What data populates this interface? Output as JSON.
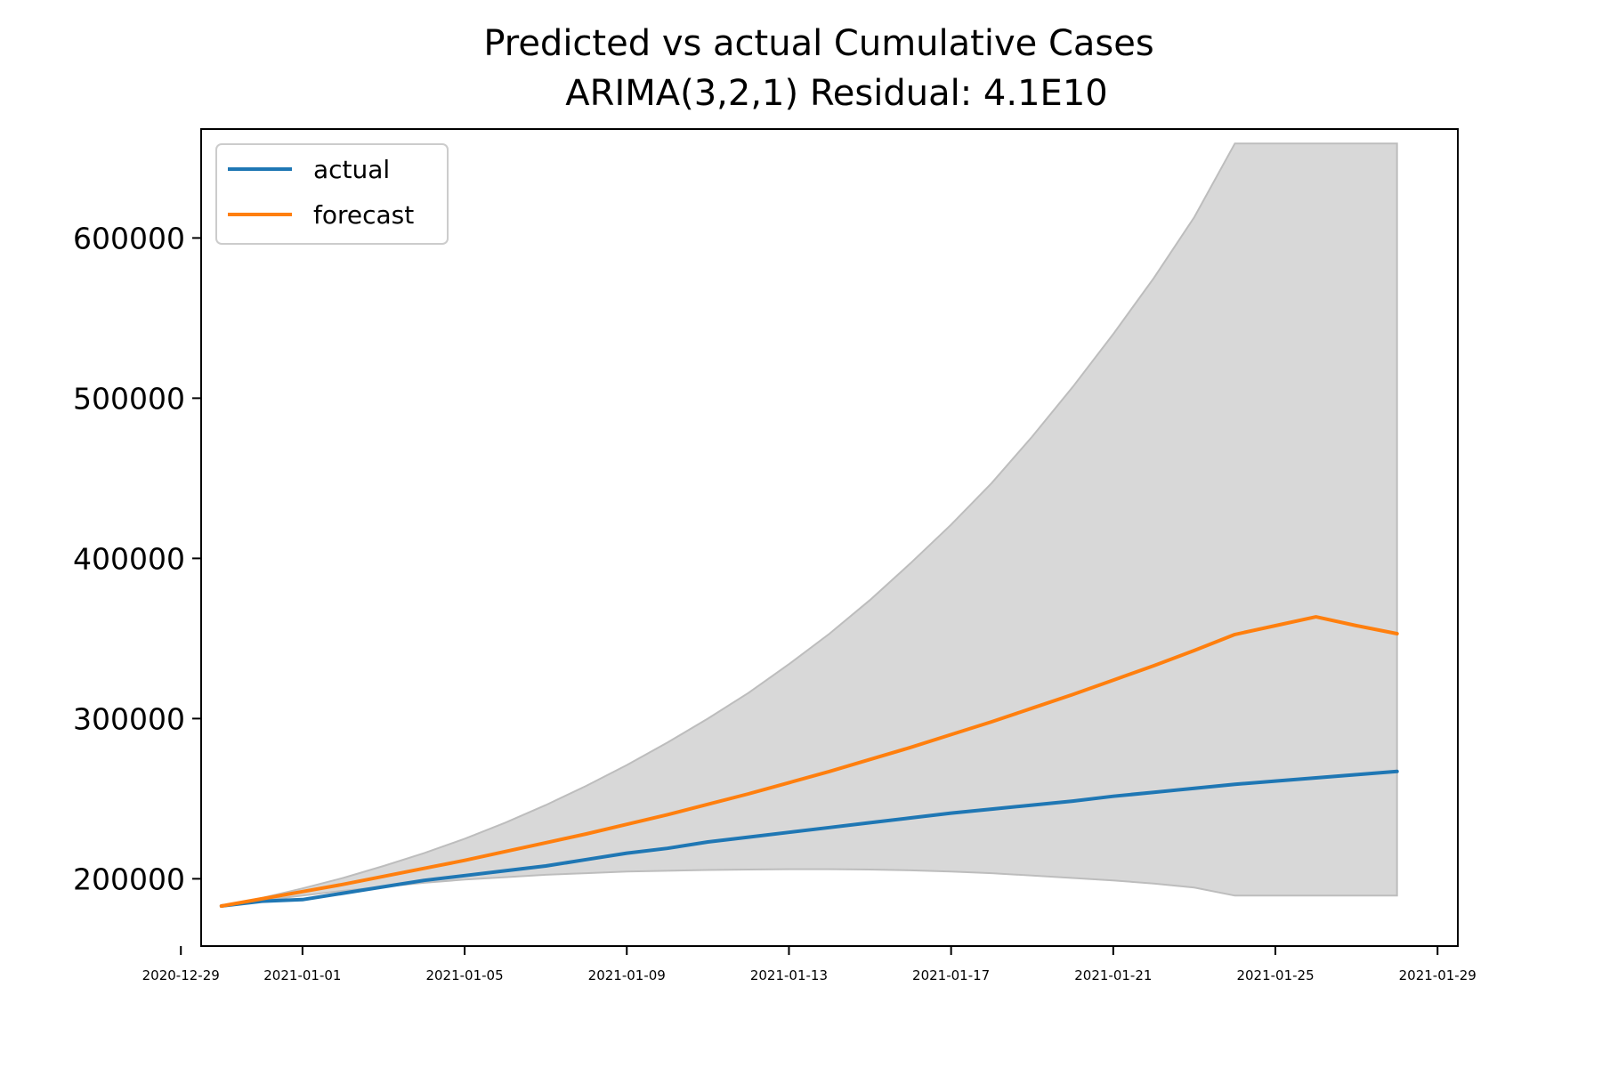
{
  "chart_data": {
    "type": "line",
    "title": "Predicted vs actual Cumulative Cases",
    "subtitle": "ARIMA(3,2,1) Residual: 4.1E10",
    "xlabel": "",
    "ylabel": "",
    "x_start": "2020-12-30",
    "x_end": "2021-01-28",
    "xlim": [
      "2020-12-29T12:00",
      "2021-01-29T12:00"
    ],
    "ylim": [
      158000,
      668000
    ],
    "x_ticks": [
      "2020-12-29",
      "2021-01-01",
      "2021-01-05",
      "2021-01-09",
      "2021-01-13",
      "2021-01-17",
      "2021-01-21",
      "2021-01-25",
      "2021-01-29"
    ],
    "y_ticks": [
      200000,
      300000,
      400000,
      500000,
      600000
    ],
    "grid": false,
    "legend_position": "top-left",
    "series": [
      {
        "name": "actual",
        "color": "#1f77b4",
        "values": [
          183000,
          186000,
          187000,
          191000,
          195000,
          199000,
          202000,
          205000,
          208000,
          212000,
          216000,
          219000,
          223000,
          226000,
          229000,
          232000,
          235000,
          238000,
          241000,
          243500,
          246000,
          248500,
          251500,
          254000,
          256500,
          259000,
          261000,
          263000,
          265000,
          267000
        ]
      },
      {
        "name": "forecast",
        "color": "#ff7f0e",
        "values": [
          183000,
          187500,
          192000,
          196500,
          201500,
          206500,
          211500,
          217000,
          222500,
          228000,
          234000,
          240000,
          246500,
          253000,
          260000,
          267000,
          274500,
          282000,
          290000,
          298000,
          306500,
          315000,
          324000,
          333000,
          342500,
          352500,
          358000,
          363500,
          358000,
          353000
        ]
      }
    ],
    "confidence_band": {
      "color": "#d8d8d8",
      "upper": [
        183000,
        188000,
        194000,
        200500,
        208000,
        216000,
        225000,
        235000,
        246000,
        258000,
        271000,
        285000,
        300000,
        316000,
        334000,
        353000,
        374000,
        397000,
        421000,
        447000,
        476000,
        507000,
        540000,
        575000,
        613000,
        659000,
        659000,
        659000,
        659000,
        659000
      ],
      "lower": [
        183000,
        186500,
        189500,
        192500,
        195000,
        197500,
        199500,
        201000,
        202500,
        203500,
        204500,
        205000,
        205500,
        205800,
        206000,
        206000,
        205800,
        205300,
        204500,
        203500,
        202000,
        200500,
        199000,
        197000,
        194500,
        189500,
        189500,
        189500,
        189500,
        189500
      ]
    }
  }
}
